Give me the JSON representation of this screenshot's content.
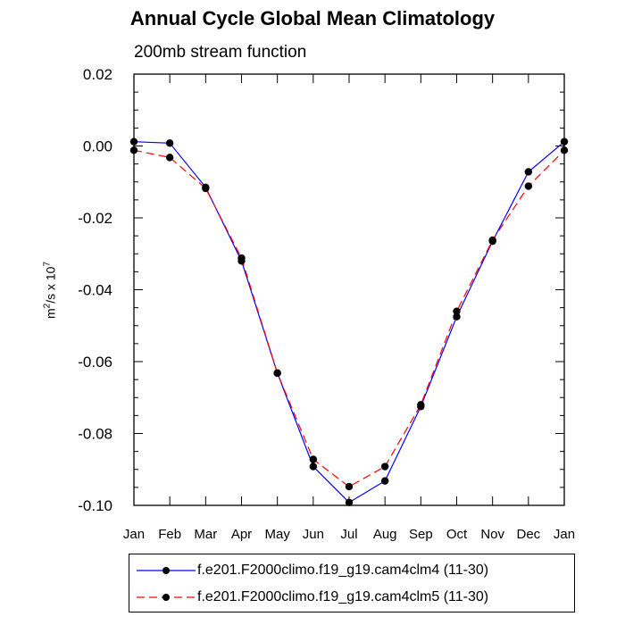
{
  "title": "Annual Cycle Global Mean Climatology",
  "subtitle": "200mb stream function",
  "ylabel": {
    "base": "m",
    "sup1": "2",
    "mid": "/s x 10",
    "sup2": "7"
  },
  "chart_data": {
    "type": "line",
    "title": "Annual Cycle Global Mean Climatology",
    "subtitle": "200mb stream function",
    "ylabel": "m2/s x 107",
    "xlabel": "",
    "categories": [
      "Jan",
      "Feb",
      "Mar",
      "Apr",
      "May",
      "Jun",
      "Jul",
      "Aug",
      "Sep",
      "Oct",
      "Nov",
      "Dec",
      "Jan"
    ],
    "ylim": [
      -0.1,
      0.02
    ],
    "yticks": [
      "0.02",
      "0.00",
      "-0.02",
      "-0.04",
      "-0.06",
      "-0.08",
      "-0.10"
    ],
    "ytick_values": [
      0.02,
      0.0,
      -0.02,
      -0.04,
      -0.06,
      -0.08,
      -0.1
    ],
    "grid": false,
    "legend_position": "bottom",
    "series": [
      {
        "name": "f.e201.F2000climo.f19_g19.cam4clm4 (11-30)",
        "color": "#0000ff",
        "dash": "solid",
        "values": [
          0.0012,
          0.0008,
          -0.0115,
          -0.032,
          -0.0632,
          -0.0892,
          -0.0992,
          -0.0932,
          -0.0725,
          -0.0475,
          -0.0265,
          -0.0072,
          0.0012
        ]
      },
      {
        "name": "f.e201.F2000climo.f19_g19.cam4clm5 (11-30)",
        "color": "#ff0000",
        "dash": "dashed",
        "values": [
          -0.0012,
          -0.0032,
          -0.0118,
          -0.0312,
          -0.0632,
          -0.0872,
          -0.0948,
          -0.0892,
          -0.072,
          -0.046,
          -0.0262,
          -0.0112,
          -0.0012
        ]
      }
    ]
  }
}
